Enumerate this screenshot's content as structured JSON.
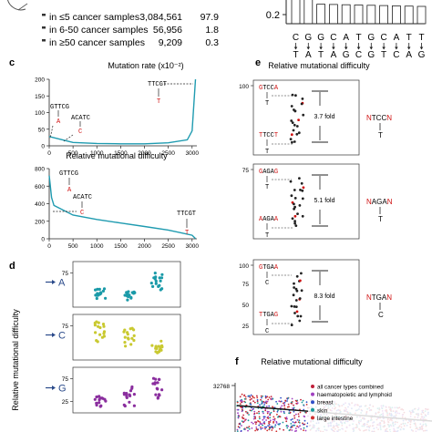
{
  "panel_letters": {
    "c": "c",
    "d": "d",
    "e": "e",
    "f": "f"
  },
  "samples_table": [
    {
      "label": "in ≤5 cancer samples",
      "count": "3,084,561",
      "pct": "97.9"
    },
    {
      "label": "in 6-50 cancer samples",
      "count": "56,956",
      "pct": "1.8"
    },
    {
      "label": "in ≥50 cancer samples",
      "count": "9,209",
      "pct": "0.3"
    }
  ],
  "top_axis_tick": "0.2",
  "seq_top": [
    "C",
    "G",
    "G",
    "C",
    "A",
    "T",
    "G",
    "C",
    "A",
    "T",
    "T"
  ],
  "seq_bottom": [
    "T",
    "A",
    "T",
    "A",
    "G",
    "C",
    "G",
    "T",
    "C",
    "A",
    "G"
  ],
  "panel_c": {
    "title1": "Mutation rate (x10⁻²)",
    "title2": "Relative mutational difficulty",
    "y1_ticks": [
      "0",
      "50",
      "100",
      "150",
      "200"
    ],
    "y2_ticks": [
      "0",
      "200",
      "400",
      "600",
      "800"
    ],
    "x_ticks": [
      "0",
      "500",
      "1000",
      "1500",
      "2000",
      "2500",
      "3000"
    ],
    "motifs": {
      "gttcg": {
        "ctx": "GTTCG",
        "mut": "A"
      },
      "acatc": {
        "ctx": "ACATC",
        "mut": "C"
      },
      "ttcgt": {
        "ctx": "TTCGT",
        "mut": "T"
      }
    },
    "chart_data": [
      {
        "type": "line",
        "title": "Mutation rate (x10⁻²)",
        "x": [
          0,
          500,
          1000,
          1500,
          2000,
          2500,
          2900,
          3000,
          3072
        ],
        "y": [
          28,
          10,
          7,
          6,
          6,
          9,
          18,
          45,
          200
        ],
        "xlim": [
          0,
          3100
        ],
        "ylim": [
          0,
          200
        ]
      },
      {
        "type": "line",
        "title": "Relative mutational difficulty",
        "x": [
          0,
          50,
          100,
          500,
          1000,
          1500,
          2000,
          2500,
          3000,
          3072
        ],
        "y": [
          720,
          470,
          380,
          270,
          220,
          180,
          140,
          100,
          40,
          3
        ],
        "xlim": [
          0,
          3100
        ],
        "ylim": [
          0,
          800
        ]
      }
    ]
  },
  "panel_d": {
    "ylabel": "Relative mutational difficulty",
    "bases": [
      "A",
      "C",
      "G"
    ],
    "y_tick_75": "75",
    "y_tick_25": "25",
    "base_colors": {
      "A": "#1a9aa8",
      "C": "#c9c930",
      "G": "#8a2e9e"
    }
  },
  "panel_e": {
    "title": "Relative mutational difficulty",
    "ticks": [
      "100",
      "75",
      "50",
      "25"
    ],
    "blocks": [
      {
        "top_motif": "GTCCA",
        "top_mut": "T",
        "bottom_motif": "TTCCT",
        "bottom_mut": "T",
        "fold": "3.7 fold",
        "consensus": "NTCCN",
        "cons_mut": "T"
      },
      {
        "top_motif": "GAGAG",
        "top_mut": "T",
        "bottom_motif": "AAGAA",
        "bottom_mut": "T",
        "fold": "5.1 fold",
        "consensus": "NAGAN",
        "cons_mut": "T"
      },
      {
        "top_motif": "GTGAA",
        "top_mut": "C",
        "bottom_motif": "TTGAG",
        "bottom_mut": "C",
        "fold": "8.3 fold",
        "consensus": "NTGAN",
        "cons_mut": "C"
      }
    ]
  },
  "panel_f": {
    "title": "Relative mutational difficulty",
    "y_tick": "32768",
    "legend": [
      {
        "label": "all cancer types combined",
        "color": "#c0203a"
      },
      {
        "label": "haematopoietic and lymphoid",
        "color": "#a040c0"
      },
      {
        "label": "breast",
        "color": "#3050c8"
      },
      {
        "label": "skin",
        "color": "#1a9a9a"
      },
      {
        "label": "large intestine",
        "color": "#d03030"
      }
    ]
  }
}
